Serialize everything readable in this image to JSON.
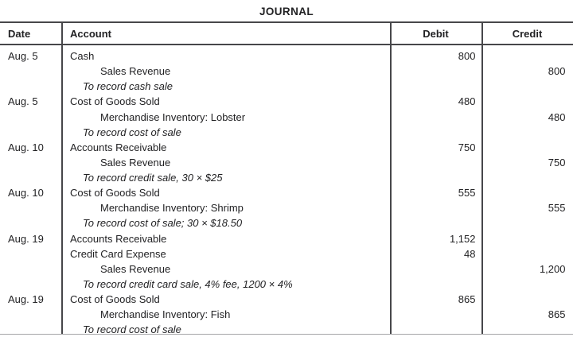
{
  "title": "JOURNAL",
  "table": {
    "headers": {
      "date": "Date",
      "account": "Account",
      "debit": "Debit",
      "credit": "Credit"
    },
    "rows": [
      {
        "date": "Aug. 5",
        "lines": [
          {
            "account": "Cash",
            "debit": "800",
            "credit": ""
          },
          {
            "account": "Sales Revenue",
            "debit": "",
            "credit": "800"
          },
          {
            "account": "To record cash sale",
            "debit": "",
            "credit": ""
          }
        ]
      },
      {
        "date": "Aug. 5",
        "lines": [
          {
            "account": "Cost of Goods Sold",
            "debit": "480",
            "credit": ""
          },
          {
            "account": "Merchandise Inventory: Lobster",
            "debit": "",
            "credit": "480"
          },
          {
            "account": "To record cost of sale",
            "debit": "",
            "credit": ""
          }
        ]
      },
      {
        "date": "Aug. 10",
        "lines": [
          {
            "account": "Accounts Receivable",
            "debit": "750",
            "credit": ""
          },
          {
            "account": "Sales Revenue",
            "debit": "",
            "credit": "750"
          },
          {
            "account": "To record credit sale, 30 × $25",
            "debit": "",
            "credit": ""
          }
        ]
      },
      {
        "date": "Aug. 10",
        "lines": [
          {
            "account": "Cost of Goods Sold",
            "debit": "555",
            "credit": ""
          },
          {
            "account": "Merchandise Inventory: Shrimp",
            "debit": "",
            "credit": "555"
          },
          {
            "account": "To record cost of sale; 30 × $18.50",
            "debit": "",
            "credit": ""
          }
        ]
      },
      {
        "date": "Aug. 19",
        "lines": [
          {
            "account": "Accounts Receivable",
            "debit": "1,152",
            "credit": ""
          },
          {
            "account": "Credit Card Expense",
            "debit": "48",
            "credit": ""
          },
          {
            "account": "Sales Revenue",
            "debit": "",
            "credit": "1,200"
          },
          {
            "account": "To record credit card sale, 4% fee, 1200 × 4%",
            "debit": "",
            "credit": ""
          }
        ]
      },
      {
        "date": "Aug. 19",
        "lines": [
          {
            "account": "Cost of Goods Sold",
            "debit": "865",
            "credit": ""
          },
          {
            "account": "Merchandise Inventory: Fish",
            "debit": "",
            "credit": "865"
          },
          {
            "account": "To record cost of sale",
            "debit": "",
            "credit": ""
          }
        ]
      }
    ]
  }
}
